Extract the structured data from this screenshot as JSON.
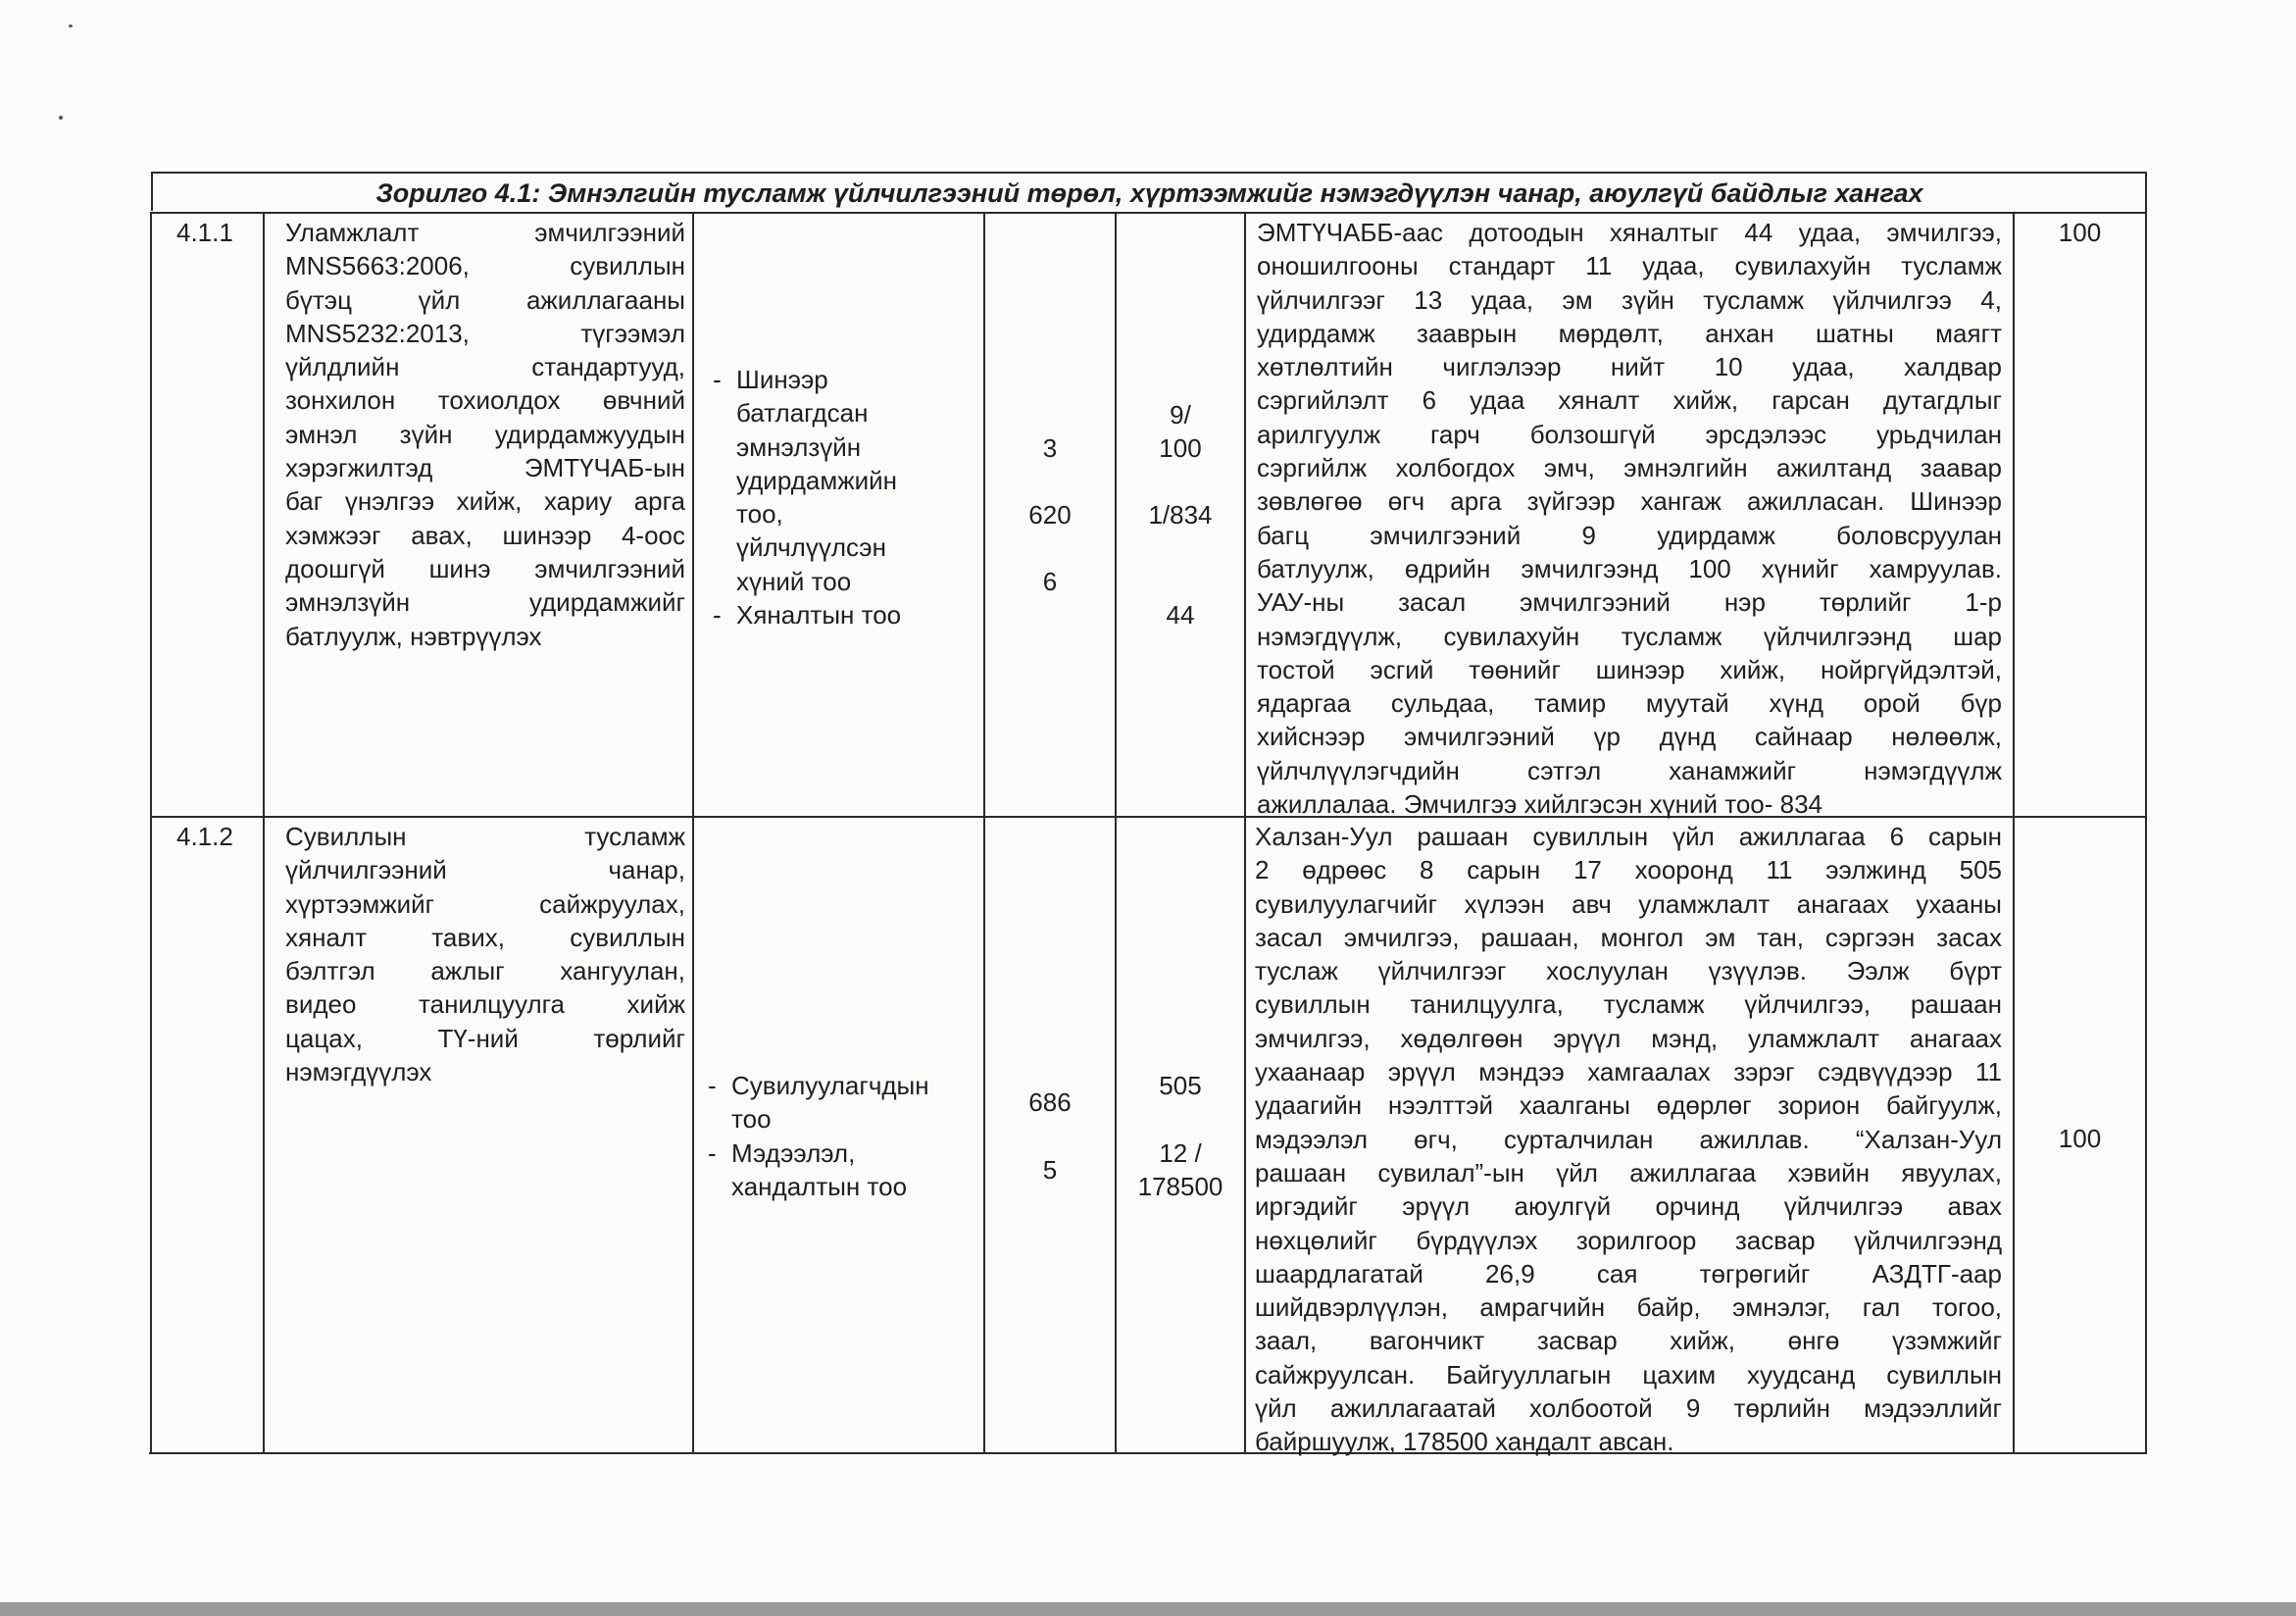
{
  "title": "Зорилго 4.1: Эмнэлгийн тусламж үйлчилгээний төрөл, хүртээмжийг нэмэгдүүлэн чанар, аюулгүй байдлыг хангах",
  "rows": [
    {
      "code": "4.1.1",
      "activity_lines": [
        "Уламжлалт эмчилгээний",
        "MNS5663:2006, сувиллын",
        "бүтэц үйл ажиллагааны",
        "MNS5232:2013, түгээмэл",
        "үйлдлийн стандартууд,",
        "зонхилон тохиолдох өвчний",
        "эмнэл зүйн удирдамжуудын",
        "хэрэгжилтэд ЭМТҮЧАБ-ын",
        "баг үнэлгээ хийж, хариу арга",
        "хэмжээг авах, шинээр 4-оос",
        "доошгүй шинэ эмчилгээний",
        "эмнэлзүйн удирдамжийг",
        "батлуулж, нэвтрүүлэх"
      ],
      "indicators": [
        {
          "lines": [
            "Шинээр",
            "батлагдсан",
            "эмнэлзүйн",
            "удирдамжийн",
            "тоо,",
            "үйлчлүүлсэн",
            "хүний тоо"
          ]
        },
        {
          "lines": [
            "Хяналтын тоо"
          ]
        }
      ],
      "baseline": [
        "3",
        "620",
        "6"
      ],
      "actual": [
        "9/",
        "100",
        "1/834",
        "44"
      ],
      "report_lines": [
        "ЭМТҮЧАББ-аас дотоодын хяналтыг 44 удаа, эмчилгээ,",
        "оношилгооны стандарт 11 удаа, сувилахуйн тусламж",
        "үйлчилгээг 13 удаа, эм зүйн тусламж үйлчилгээ 4,",
        "удирдамж зааврын мөрдөлт, анхан шатны маягт",
        "хөтлөлтийн чиглэлээр нийт 10 удаа, халдвар",
        "сэргийлэлт 6 удаа хяналт хийж, гарсан дутагдлыг",
        "арилгуулж гарч болзошгүй эрсдэлээс урьдчилан",
        "сэргийлж холбогдох эмч, эмнэлгийн ажилтанд заавар",
        "зөвлөгөө өгч арга зүйгээр хангаж ажилласан.   Шинээр",
        "багц эмчилгээний 9 удирдамж боловсруулан",
        "батлуулж, өдрийн эмчилгээнд 100 хүнийг хамруулав.",
        "УАУ-ны  засал эмчилгээний нэр төрлийг 1-р",
        "нэмэгдүүлж, сувилахуйн тусламж үйлчилгээнд шар",
        "тостой эсгий төөнийг шинээр хийж, нойргүйдэлтэй,",
        "ядаргаа сульдаа, тамир муутай хүнд орой бүр",
        "хийснээр эмчилгээний үр дүнд сайнаар нөлөөлж,",
        "үйлчлүүлэгчдийн сэтгэл ханамжийг нэмэгдүүлж",
        "ажиллалаа.  Эмчилгээ хийлгэсэн хүний тоо- 834"
      ],
      "percent": "100"
    },
    {
      "code": "4.1.2",
      "activity_lines": [
        "Сувиллын тусламж",
        "үйлчилгээний чанар,",
        "хүртээмжийг сайжруулах,",
        "хяналт тавих, сувиллын",
        "бэлтгэл ажлыг хангуулан,",
        "видео танилцуулга хийж",
        "цацах, ТҮ-ний төрлийг",
        "нэмэгдүүлэх"
      ],
      "indicators": [
        {
          "lines": [
            "Сувилуулагчдын",
            "тоо"
          ]
        },
        {
          "lines": [
            "Мэдээлэл,",
            "хандалтын тоо"
          ]
        }
      ],
      "baseline": [
        "686",
        "5"
      ],
      "actual": [
        "505",
        "12 /",
        "178500"
      ],
      "report_lines": [
        "Халзан-Уул рашаан сувиллын үйл ажиллагаа 6 сарын",
        "2 өдрөөс 8 сарын 17 хооронд 11 ээлжинд 505",
        "сувилуулагчийг хүлээн авч уламжлалт анагаах ухааны",
        "засал эмчилгээ, рашаан, монгол эм тан, сэргээн засах",
        "туслаж үйлчилгээг хослуулан үзүүлэв. Ээлж бүрт",
        "сувиллын танилцуулга, тусламж үйлчилгээ, рашаан",
        "эмчилгээ, хөдөлгөөн эрүүл мэнд, уламжлалт анагаах",
        "ухаанаар эрүүл мэндээ хамгаалах зэрэг сэдвүүдээр 11",
        "удаагийн нээлттэй хаалганы өдөрлөг зорион байгуулж,",
        "мэдээлэл өгч, сурталчилан ажиллав. “Халзан-Уул",
        "рашаан сувилал”-ын үйл ажиллагаа хэвийн явуулах,",
        "иргэдийг эрүүл аюулгүй орчинд үйлчилгээ авах",
        "нөхцөлийг бүрдүүлэх зорилгоор засвар үйлчилгээнд",
        "шаардлагатай 26,9 сая төгрөгийг АЗДТГ-аар",
        "шийдвэрлүүлэн,  амрагчийн байр, эмнэлэг, гал тогоо,",
        "заал, вагончикт засвар хийж, өнгө үзэмжийг",
        "сайжруулсан. Байгууллагын цахим хуудсанд сувиллын",
        "үйл ажиллагаатай холбоотой  9 төрлийн мэдээллийг",
        "байршуулж, 178500 хандалт авсан."
      ],
      "percent": "100"
    }
  ]
}
